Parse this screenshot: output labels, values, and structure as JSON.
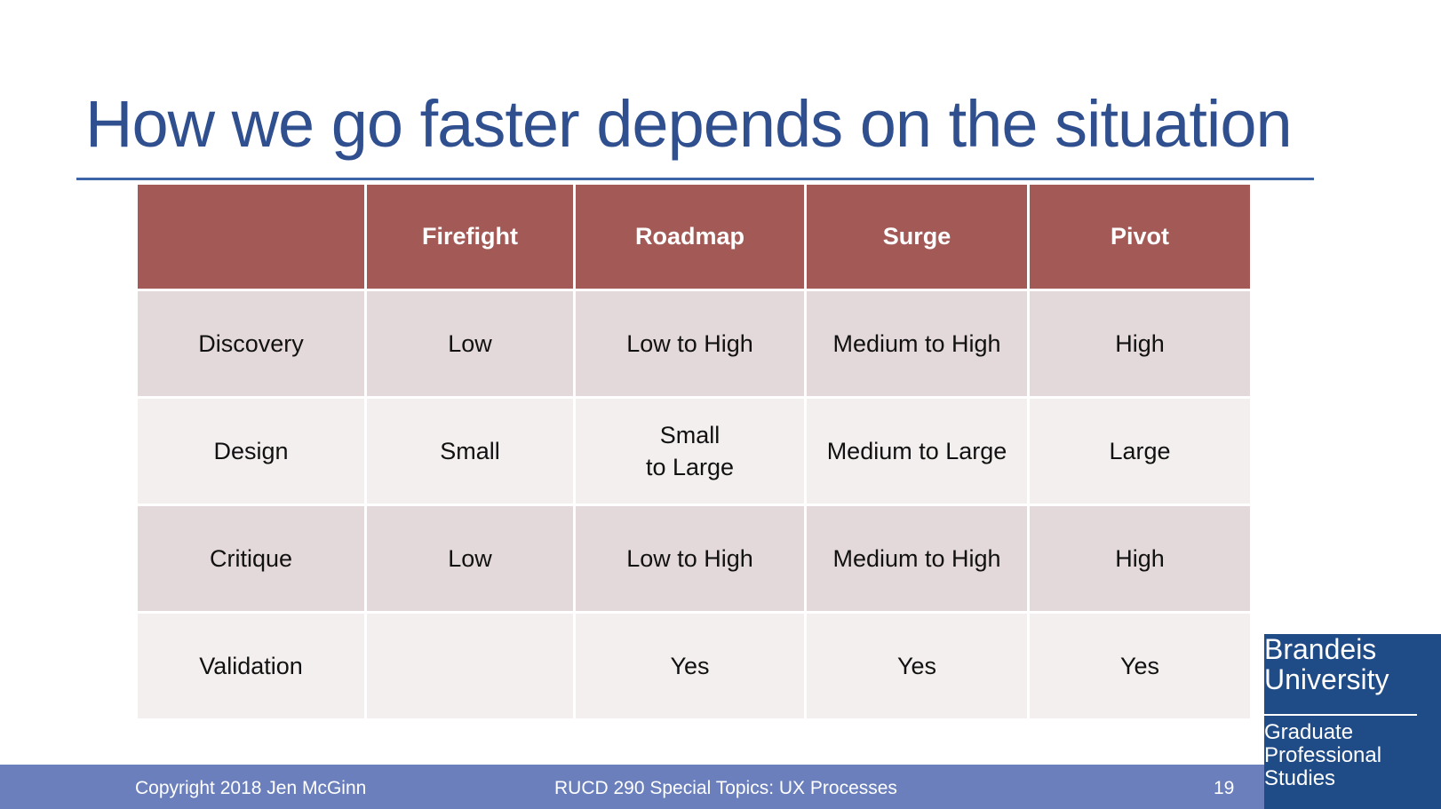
{
  "slide": {
    "title": "How we go faster depends on the situation"
  },
  "table": {
    "headers": [
      "",
      "Firefight",
      "Roadmap",
      "Surge",
      "Pivot"
    ],
    "rows": [
      {
        "label": "Discovery",
        "cells": [
          "Low",
          "Low to High",
          "Medium to High",
          "High"
        ]
      },
      {
        "label": "Design",
        "cells": [
          "Small",
          "Small\nto Large",
          "Medium to Large",
          "Large"
        ]
      },
      {
        "label": "Critique",
        "cells": [
          "Low",
          "Low to High",
          "Medium to High",
          "High"
        ]
      },
      {
        "label": "Validation",
        "cells": [
          "",
          "Yes",
          "Yes",
          "Yes"
        ]
      }
    ]
  },
  "footer": {
    "copyright": "Copyright  2018 Jen McGinn",
    "course": "RUCD 290 Special Topics: UX Processes",
    "page_number": "19"
  },
  "branding": {
    "university_line1": "Brandeis",
    "university_line2": "University",
    "school_line1": "Graduate",
    "school_line2": "Professional",
    "school_line3": "Studies"
  },
  "colors": {
    "title": "#2f4f8f",
    "header_fill": "#a35a56",
    "row_odd_fill": "#e4d9da",
    "row_even_fill": "#f3efef",
    "footer_fill": "#6a7fbb",
    "brand_fill": "#1f4b86"
  }
}
